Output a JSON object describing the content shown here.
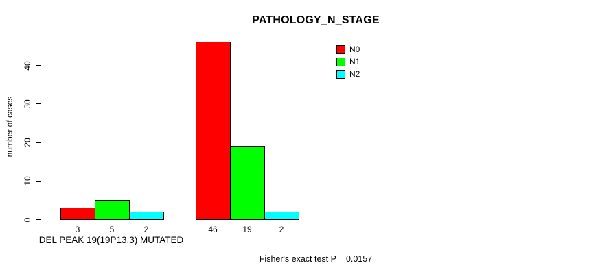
{
  "chart_data": {
    "type": "bar",
    "title": "PATHOLOGY_N_STAGE",
    "ylabel": "number of cases",
    "xlabel": "DEL PEAK 19(19P13.3) MUTATED",
    "ylim": [
      0,
      46
    ],
    "yticks": [
      0,
      10,
      20,
      30,
      40
    ],
    "grid": false,
    "legend_position": "top-right",
    "groups": [
      "DEL PEAK 19(19P13.3) MUTATED",
      ""
    ],
    "series": [
      {
        "name": "N0",
        "color": "#FF0000",
        "values": [
          3,
          46
        ]
      },
      {
        "name": "N1",
        "color": "#00FF00",
        "values": [
          5,
          19
        ]
      },
      {
        "name": "N2",
        "color": "#00FFFF",
        "values": [
          2,
          2
        ]
      }
    ],
    "bar_value_labels": [
      [
        "3",
        "5",
        "2"
      ],
      [
        "46",
        "19",
        "2"
      ]
    ],
    "annotation": "Fisher's exact test P = 0.0157",
    "axis_color": "#000000",
    "background_color": "#FFFFFF"
  }
}
